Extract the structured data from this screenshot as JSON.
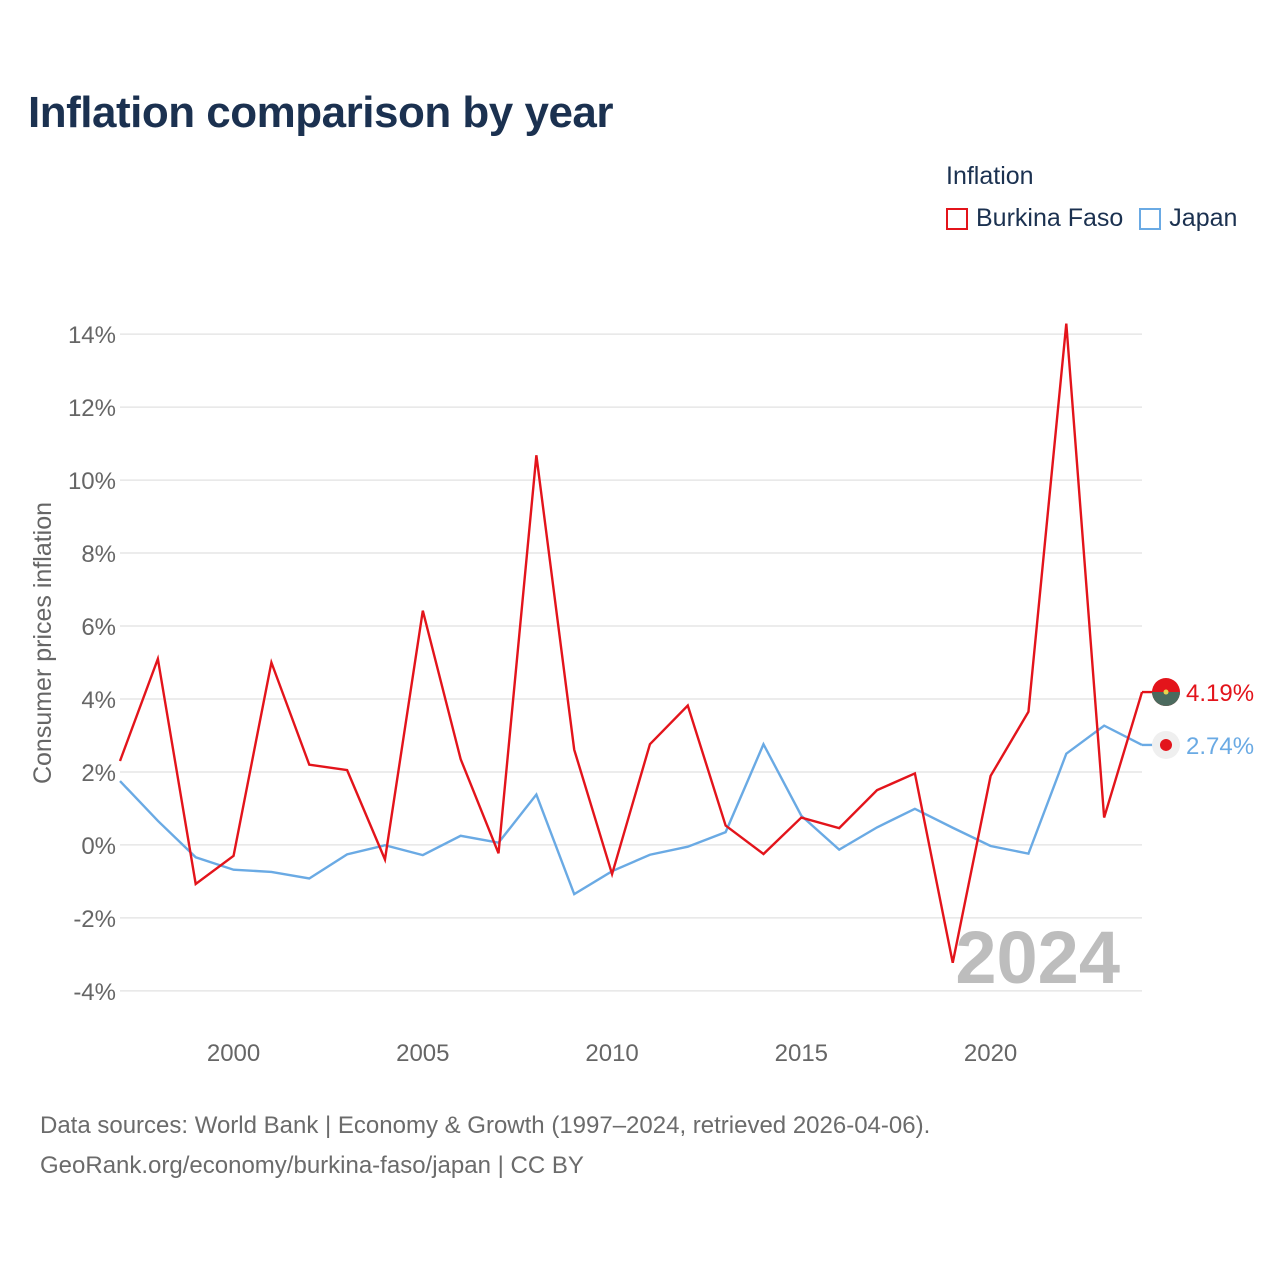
{
  "title": "Inflation comparison by year",
  "legend": {
    "title": "Inflation",
    "items": [
      {
        "name": "Burkina Faso",
        "color": "#e3141b"
      },
      {
        "name": "Japan",
        "color": "#6aaae4"
      }
    ]
  },
  "footer": {
    "line1": "Data sources: World Bank | Economy & Growth (1997–2024, retrieved 2026-04-06).",
    "line2": "GeoRank.org/economy/burkina-faso/japan | CC BY"
  },
  "chart_data": {
    "type": "line",
    "ylabel": "Consumer prices inflation",
    "xlabel": "",
    "year_watermark": "2024",
    "x": [
      1997,
      1998,
      1999,
      2000,
      2001,
      2002,
      2003,
      2004,
      2005,
      2006,
      2007,
      2008,
      2009,
      2010,
      2011,
      2012,
      2013,
      2014,
      2015,
      2016,
      2017,
      2018,
      2019,
      2020,
      2021,
      2022,
      2023,
      2024
    ],
    "xlim": [
      1997,
      2024
    ],
    "ylim": [
      -4.8,
      14.8
    ],
    "xticks": [
      2000,
      2005,
      2010,
      2015,
      2020
    ],
    "yticks": [
      -4,
      -2,
      0,
      2,
      4,
      6,
      8,
      10,
      12,
      14
    ],
    "ytick_labels": [
      "-4%",
      "-2%",
      "0%",
      "2%",
      "4%",
      "6%",
      "8%",
      "10%",
      "12%",
      "14%"
    ],
    "series": [
      {
        "name": "Burkina Faso",
        "color": "#e3141b",
        "values": [
          2.3,
          5.1,
          -1.07,
          -0.3,
          5.0,
          2.2,
          2.05,
          -0.4,
          6.42,
          2.35,
          -0.23,
          10.68,
          2.61,
          -0.8,
          2.76,
          3.82,
          0.53,
          -0.25,
          0.75,
          0.46,
          1.5,
          1.96,
          -3.23,
          1.89,
          3.65,
          14.29,
          0.75,
          4.19
        ],
        "end_label": "4.19%"
      },
      {
        "name": "Japan",
        "color": "#6aaae4",
        "values": [
          1.75,
          0.66,
          -0.34,
          -0.68,
          -0.74,
          -0.92,
          -0.26,
          -0.01,
          -0.28,
          0.25,
          0.06,
          1.38,
          -1.35,
          -0.72,
          -0.27,
          -0.05,
          0.35,
          2.76,
          0.8,
          -0.13,
          0.48,
          0.99,
          0.47,
          -0.03,
          -0.24,
          2.5,
          3.27,
          2.74
        ],
        "end_label": "2.74%"
      }
    ]
  }
}
